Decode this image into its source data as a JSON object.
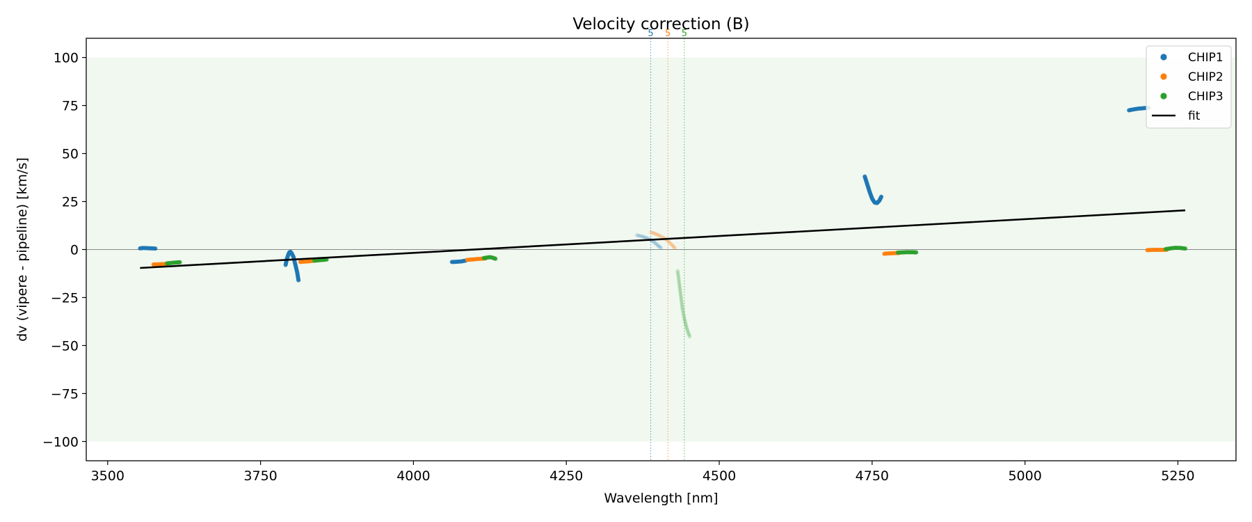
{
  "chart_data": {
    "type": "scatter",
    "title": "Velocity correction (B)",
    "xlabel": "Wavelength [nm]",
    "ylabel": "dv (vipere - pipeline) [km/s]",
    "xlim": [
      3465,
      5345
    ],
    "ylim": [
      -110,
      110
    ],
    "xticks": [
      3500,
      3750,
      4000,
      4250,
      4500,
      4750,
      5000,
      5250
    ],
    "yticks": [
      -100,
      -75,
      -50,
      -25,
      0,
      25,
      50,
      75,
      100
    ],
    "xtick_labels": [
      "3500",
      "3750",
      "4000",
      "4250",
      "4500",
      "4750",
      "5000",
      "5250"
    ],
    "ytick_labels": [
      "−100",
      "−75",
      "−50",
      "−25",
      "0",
      "25",
      "50",
      "75",
      "100"
    ],
    "grid": false,
    "legend_position": "top-right",
    "shaded_band": {
      "y_range": [
        -100,
        100
      ],
      "color": "#2ca02c"
    },
    "zero_line": {
      "y": 0,
      "color": "#888888"
    },
    "vertical_markers": [
      {
        "x": 4388,
        "label": "5",
        "color": "#1f77b4"
      },
      {
        "x": 4416,
        "label": "5",
        "color": "#ff7f0e"
      },
      {
        "x": 4443,
        "label": "5",
        "color": "#2ca02c"
      }
    ],
    "series": [
      {
        "name": "CHIP1",
        "color": "#1f77b4",
        "segments": [
          {
            "points": [
              [
                3553,
                0.6
              ],
              [
                3558,
                0.8
              ],
              [
                3565,
                0.7
              ],
              [
                3572,
                0.6
              ],
              [
                3578,
                0.5
              ]
            ]
          },
          {
            "points": [
              [
                3791,
                -8
              ],
              [
                3793,
                -5
              ],
              [
                3795,
                -3
              ],
              [
                3797,
                -1.5
              ],
              [
                3799,
                -1.2
              ],
              [
                3801,
                -2
              ],
              [
                3804,
                -4
              ],
              [
                3807,
                -8
              ],
              [
                3810,
                -12
              ],
              [
                3812,
                -16
              ]
            ]
          },
          {
            "points": [
              [
                4063,
                -6.5
              ],
              [
                4070,
                -6.4
              ],
              [
                4078,
                -6.2
              ],
              [
                4085,
                -5.8
              ]
            ]
          },
          {
            "points": [
              [
                4738,
                38
              ],
              [
                4742,
                34
              ],
              [
                4746,
                30
              ],
              [
                4750,
                26.5
              ],
              [
                4754,
                24.5
              ],
              [
                4758,
                24.2
              ],
              [
                4762,
                25.5
              ],
              [
                4765,
                27.5
              ]
            ]
          },
          {
            "points": [
              [
                5170,
                72.5
              ],
              [
                5178,
                73
              ],
              [
                5186,
                73.4
              ],
              [
                5194,
                73.6
              ],
              [
                5202,
                73.8
              ]
            ]
          }
        ]
      },
      {
        "name": "CHIP2",
        "color": "#ff7f0e",
        "segments": [
          {
            "points": [
              [
                3575,
                -7.8
              ],
              [
                3582,
                -7.7
              ],
              [
                3590,
                -7.6
              ],
              [
                3598,
                -7.5
              ]
            ]
          },
          {
            "points": [
              [
                3815,
                -6.5
              ],
              [
                3822,
                -6.3
              ],
              [
                3830,
                -6.1
              ],
              [
                3838,
                -5.8
              ]
            ]
          },
          {
            "points": [
              [
                4088,
                -5.4
              ],
              [
                4095,
                -5.2
              ],
              [
                4103,
                -5
              ],
              [
                4111,
                -4.8
              ],
              [
                4118,
                -4.6
              ]
            ]
          },
          {
            "points": [
              [
                4770,
                -2.2
              ],
              [
                4778,
                -2
              ],
              [
                4786,
                -1.9
              ],
              [
                4794,
                -1.8
              ]
            ]
          },
          {
            "points": [
              [
                5200,
                -0.3
              ],
              [
                5208,
                -0.2
              ],
              [
                5216,
                -0.2
              ],
              [
                5224,
                -0.2
              ],
              [
                5232,
                -0.1
              ]
            ]
          }
        ]
      },
      {
        "name": "CHIP3",
        "color": "#2ca02c",
        "segments": [
          {
            "points": [
              [
                3597,
                -7.2
              ],
              [
                3604,
                -7
              ],
              [
                3611,
                -6.8
              ],
              [
                3618,
                -6.6
              ]
            ]
          },
          {
            "points": [
              [
                3838,
                -5.8
              ],
              [
                3845,
                -5.6
              ],
              [
                3852,
                -5.4
              ],
              [
                3858,
                -5.2
              ]
            ]
          },
          {
            "points": [
              [
                4115,
                -4.5
              ],
              [
                4120,
                -4.2
              ],
              [
                4125,
                -4
              ],
              [
                4130,
                -4.3
              ],
              [
                4134,
                -4.8
              ]
            ]
          },
          {
            "points": [
              [
                4792,
                -1.6
              ],
              [
                4800,
                -1.5
              ],
              [
                4808,
                -1.4
              ],
              [
                4815,
                -1.4
              ],
              [
                4822,
                -1.5
              ]
            ]
          },
          {
            "points": [
              [
                5230,
                0.2
              ],
              [
                5238,
                0.6
              ],
              [
                5246,
                0.9
              ],
              [
                5254,
                0.8
              ],
              [
                5262,
                0.5
              ]
            ]
          }
        ]
      },
      {
        "name": "fit",
        "color": "#000000",
        "type": "line",
        "points": [
          [
            3553,
            -9.6
          ],
          [
            5262,
            20.4
          ]
        ]
      }
    ],
    "faint_segments": [
      {
        "color": "#1f77b4",
        "points": [
          [
            4365,
            7.5
          ],
          [
            4372,
            7
          ],
          [
            4380,
            6.2
          ],
          [
            4388,
            5
          ],
          [
            4395,
            3.5
          ],
          [
            4400,
            2
          ],
          [
            4405,
            0.8
          ]
        ]
      },
      {
        "color": "#ff7f0e",
        "points": [
          [
            4388,
            9
          ],
          [
            4395,
            8.3
          ],
          [
            4402,
            7.3
          ],
          [
            4410,
            6
          ],
          [
            4417,
            4.2
          ],
          [
            4423,
            2.3
          ],
          [
            4428,
            0.6
          ]
        ]
      },
      {
        "color": "#2ca02c",
        "points": [
          [
            4432,
            -11
          ],
          [
            4434,
            -16
          ],
          [
            4436,
            -21
          ],
          [
            4438,
            -26
          ],
          [
            4440,
            -31
          ],
          [
            4443,
            -36
          ],
          [
            4446,
            -40
          ],
          [
            4449,
            -43
          ],
          [
            4452,
            -45.5
          ]
        ]
      }
    ]
  }
}
